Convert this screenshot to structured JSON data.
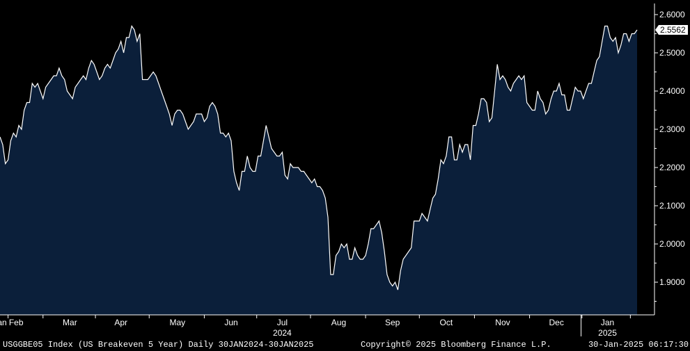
{
  "footer": {
    "left": "USGGBE05 Index (US Breakeven 5 Year)  Daily 30JAN2024-30JAN2025",
    "middle": "Copyright© 2025 Bloomberg Finance L.P.",
    "right": "30-Jan-2025 06:17:30"
  },
  "colors": {
    "background": "#000000",
    "fill": "#0b1f3a",
    "line": "#ffffff",
    "axis": "#ffffff"
  },
  "chart_data": {
    "type": "area",
    "title": "",
    "xlabel": "",
    "ylabel": "",
    "ylim": [
      1.82,
      2.62
    ],
    "yticks": [
      "2.6000",
      "2.5000",
      "2.4000",
      "2.3000",
      "2.2000",
      "2.1000",
      "2.0000",
      "1.9000"
    ],
    "last_value_label": "2.5562",
    "month_labels": [
      {
        "label": "Jan",
        "x_index": 0
      },
      {
        "label": "Feb",
        "x_index": 6
      },
      {
        "label": "Mar",
        "x_index": 26
      },
      {
        "label": "Apr",
        "x_index": 45
      },
      {
        "label": "May",
        "x_index": 66
      },
      {
        "label": "Jun",
        "x_index": 86
      },
      {
        "label": "Jul",
        "x_index": 105
      },
      {
        "label": "Aug",
        "x_index": 126
      },
      {
        "label": "Sep",
        "x_index": 146
      },
      {
        "label": "Oct",
        "x_index": 166
      },
      {
        "label": "Nov",
        "x_index": 187
      },
      {
        "label": "Dec",
        "x_index": 207
      },
      {
        "label": "Jan",
        "x_index": 226
      }
    ],
    "year_labels": [
      {
        "label": "2024",
        "x_index": 105
      },
      {
        "label": "2025",
        "x_index": 226
      }
    ],
    "series": [
      {
        "values": [
          2.28,
          2.26,
          2.21,
          2.22,
          2.27,
          2.29,
          2.28,
          2.31,
          2.3,
          2.35,
          2.37,
          2.37,
          2.42,
          2.41,
          2.42,
          2.4,
          2.38,
          2.41,
          2.42,
          2.43,
          2.44,
          2.44,
          2.46,
          2.44,
          2.43,
          2.4,
          2.39,
          2.38,
          2.41,
          2.42,
          2.43,
          2.44,
          2.43,
          2.46,
          2.48,
          2.47,
          2.45,
          2.43,
          2.44,
          2.46,
          2.47,
          2.46,
          2.48,
          2.5,
          2.51,
          2.53,
          2.5,
          2.54,
          2.54,
          2.57,
          2.56,
          2.53,
          2.55,
          2.43,
          2.43,
          2.43,
          2.44,
          2.45,
          2.44,
          2.42,
          2.4,
          2.38,
          2.36,
          2.34,
          2.31,
          2.34,
          2.35,
          2.35,
          2.34,
          2.32,
          2.3,
          2.31,
          2.32,
          2.34,
          2.34,
          2.34,
          2.32,
          2.33,
          2.36,
          2.37,
          2.36,
          2.34,
          2.29,
          2.29,
          2.28,
          2.29,
          2.27,
          2.19,
          2.16,
          2.14,
          2.19,
          2.19,
          2.23,
          2.2,
          2.19,
          2.19,
          2.23,
          2.23,
          2.27,
          2.31,
          2.28,
          2.25,
          2.24,
          2.23,
          2.23,
          2.24,
          2.18,
          2.17,
          2.21,
          2.2,
          2.2,
          2.2,
          2.19,
          2.19,
          2.18,
          2.17,
          2.16,
          2.17,
          2.15,
          2.15,
          2.14,
          2.12,
          2.07,
          1.92,
          1.92,
          1.97,
          1.98,
          2.0,
          1.99,
          2.0,
          1.96,
          1.96,
          1.99,
          1.97,
          1.96,
          1.96,
          1.97,
          2.0,
          2.04,
          2.04,
          2.05,
          2.06,
          2.03,
          1.98,
          1.92,
          1.9,
          1.89,
          1.9,
          1.88,
          1.93,
          1.96,
          1.97,
          1.98,
          1.99,
          2.06,
          2.06,
          2.06,
          2.08,
          2.07,
          2.06,
          2.09,
          2.12,
          2.13,
          2.17,
          2.22,
          2.21,
          2.23,
          2.28,
          2.28,
          2.22,
          2.22,
          2.26,
          2.24,
          2.26,
          2.26,
          2.22,
          2.31,
          2.31,
          2.34,
          2.38,
          2.38,
          2.37,
          2.32,
          2.33,
          2.4,
          2.47,
          2.43,
          2.44,
          2.43,
          2.41,
          2.4,
          2.42,
          2.43,
          2.44,
          2.43,
          2.44,
          2.37,
          2.36,
          2.35,
          2.35,
          2.4,
          2.38,
          2.37,
          2.34,
          2.35,
          2.38,
          2.4,
          2.4,
          2.42,
          2.39,
          2.39,
          2.35,
          2.35,
          2.38,
          2.41,
          2.4,
          2.4,
          2.38,
          2.4,
          2.42,
          2.42,
          2.45,
          2.48,
          2.49,
          2.53,
          2.57,
          2.57,
          2.54,
          2.53,
          2.54,
          2.5,
          2.52,
          2.55,
          2.55,
          2.53,
          2.55,
          2.55,
          2.56
        ]
      }
    ]
  }
}
